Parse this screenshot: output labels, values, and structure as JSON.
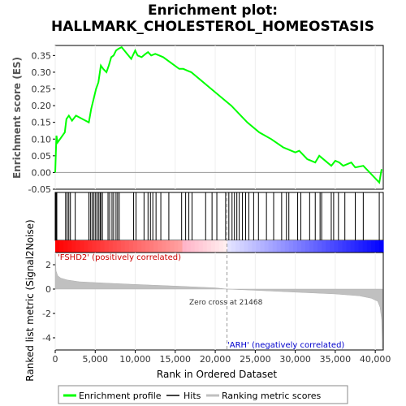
{
  "chart_data": {
    "type": "line",
    "title_line1": "Enrichment plot:",
    "title_line2": "HALLMARK_CHOLESTEROL_HOMEOSTASIS",
    "es_panel": {
      "ylabel": "Enrichment score (ES)",
      "yticks": [
        "0.35",
        "0.30",
        "0.25",
        "0.20",
        "0.15",
        "0.10",
        "0.05",
        "0.00",
        "-0.05"
      ],
      "ylim": [
        -0.05,
        0.38
      ],
      "series": [
        {
          "name": "Enrichment profile",
          "color": "#00ff00",
          "x": [
            0,
            80,
            150,
            300,
            1200,
            1400,
            1700,
            2100,
            2600,
            4200,
            4500,
            4800,
            5100,
            5400,
            5700,
            6000,
            6400,
            6700,
            7000,
            7300,
            7600,
            7900,
            8300,
            9500,
            10000,
            10300,
            10800,
            11300,
            11600,
            12000,
            12500,
            13000,
            13500,
            15500,
            16000,
            16500,
            17000,
            19000,
            21000,
            22000,
            24000,
            25500,
            27000,
            28500,
            29000,
            30000,
            30500,
            31500,
            32500,
            33000,
            34500,
            35000,
            35500,
            36000,
            37000,
            37500,
            38500,
            40500,
            40800
          ],
          "y": [
            0.0,
            0.06,
            0.11,
            0.09,
            0.12,
            0.16,
            0.17,
            0.155,
            0.17,
            0.15,
            0.19,
            0.22,
            0.25,
            0.27,
            0.32,
            0.31,
            0.3,
            0.32,
            0.345,
            0.35,
            0.365,
            0.37,
            0.375,
            0.34,
            0.365,
            0.35,
            0.345,
            0.355,
            0.36,
            0.35,
            0.355,
            0.35,
            0.345,
            0.31,
            0.31,
            0.305,
            0.3,
            0.26,
            0.22,
            0.2,
            0.15,
            0.12,
            0.1,
            0.075,
            0.07,
            0.06,
            0.065,
            0.04,
            0.03,
            0.05,
            0.02,
            0.035,
            0.03,
            0.02,
            0.03,
            0.015,
            0.02,
            -0.03,
            0.01
          ]
        }
      ]
    },
    "hits": [
      100,
      200,
      1300,
      1500,
      1700,
      1900,
      2500,
      4200,
      4400,
      4600,
      4800,
      5000,
      5200,
      5400,
      5600,
      5700,
      5900,
      6600,
      6800,
      7100,
      7300,
      7600,
      7800,
      8000,
      9800,
      10100,
      11100,
      11600,
      11900,
      12200,
      12600,
      13200,
      14200,
      15800,
      16300,
      16700,
      17100,
      18800,
      19600,
      20200,
      21300,
      21700,
      22100,
      22400,
      22700,
      23000,
      23400,
      23800,
      24200,
      24800,
      25400,
      26400,
      27300,
      28300,
      28900,
      29200,
      30300,
      30700,
      31800,
      32500,
      33100,
      33300,
      34500,
      34800,
      35400,
      36200,
      37500,
      38500,
      40500
    ],
    "ranked_panel": {
      "ylabel": "Ranked list metric (Signal2Noise)",
      "yticks": [
        "2",
        "0",
        "-2",
        "-4"
      ],
      "ylim": [
        -5,
        3
      ],
      "metric_x": [
        0,
        100,
        300,
        700,
        1500,
        3000,
        6000,
        10000,
        15000,
        20000,
        21468,
        25000,
        30000,
        35000,
        38000,
        39500,
        40300,
        40600,
        40800,
        40900
      ],
      "metric_y": [
        2.9,
        1.5,
        1.1,
        0.9,
        0.75,
        0.6,
        0.5,
        0.38,
        0.25,
        0.1,
        0.0,
        -0.1,
        -0.25,
        -0.4,
        -0.55,
        -0.75,
        -1.0,
        -1.5,
        -2.5,
        -4.9
      ],
      "color": "#c0c0c0"
    },
    "xlabel": "Rank in Ordered Dataset",
    "xticks": [
      "0",
      "5,000",
      "10,000",
      "15,000",
      "20,000",
      "25,000",
      "30,000",
      "35,000",
      "40,000"
    ],
    "xtick_values": [
      0,
      5000,
      10000,
      15000,
      20000,
      25000,
      30000,
      35000,
      40000
    ],
    "xlim": [
      0,
      41000
    ],
    "es_ytick_values": [
      0.35,
      0.3,
      0.25,
      0.2,
      0.15,
      0.1,
      0.05,
      0.0,
      -0.05
    ],
    "ranked_ytick_values": [
      2,
      0,
      -2,
      -4
    ],
    "pos_label": "'FSHD2' (positively correlated)",
    "neg_label": "'ARH' (negatively correlated)",
    "zero_cross_label": "Zero cross at 21468",
    "zero_cross": 21468,
    "legend": [
      "Enrichment profile",
      "Hits",
      "Ranking metric scores"
    ],
    "colors": {
      "profile": "#00ff00",
      "hits": "#000000",
      "metric": "#c0c0c0",
      "positive": "#cc0000",
      "negative": "#0000cc"
    }
  }
}
